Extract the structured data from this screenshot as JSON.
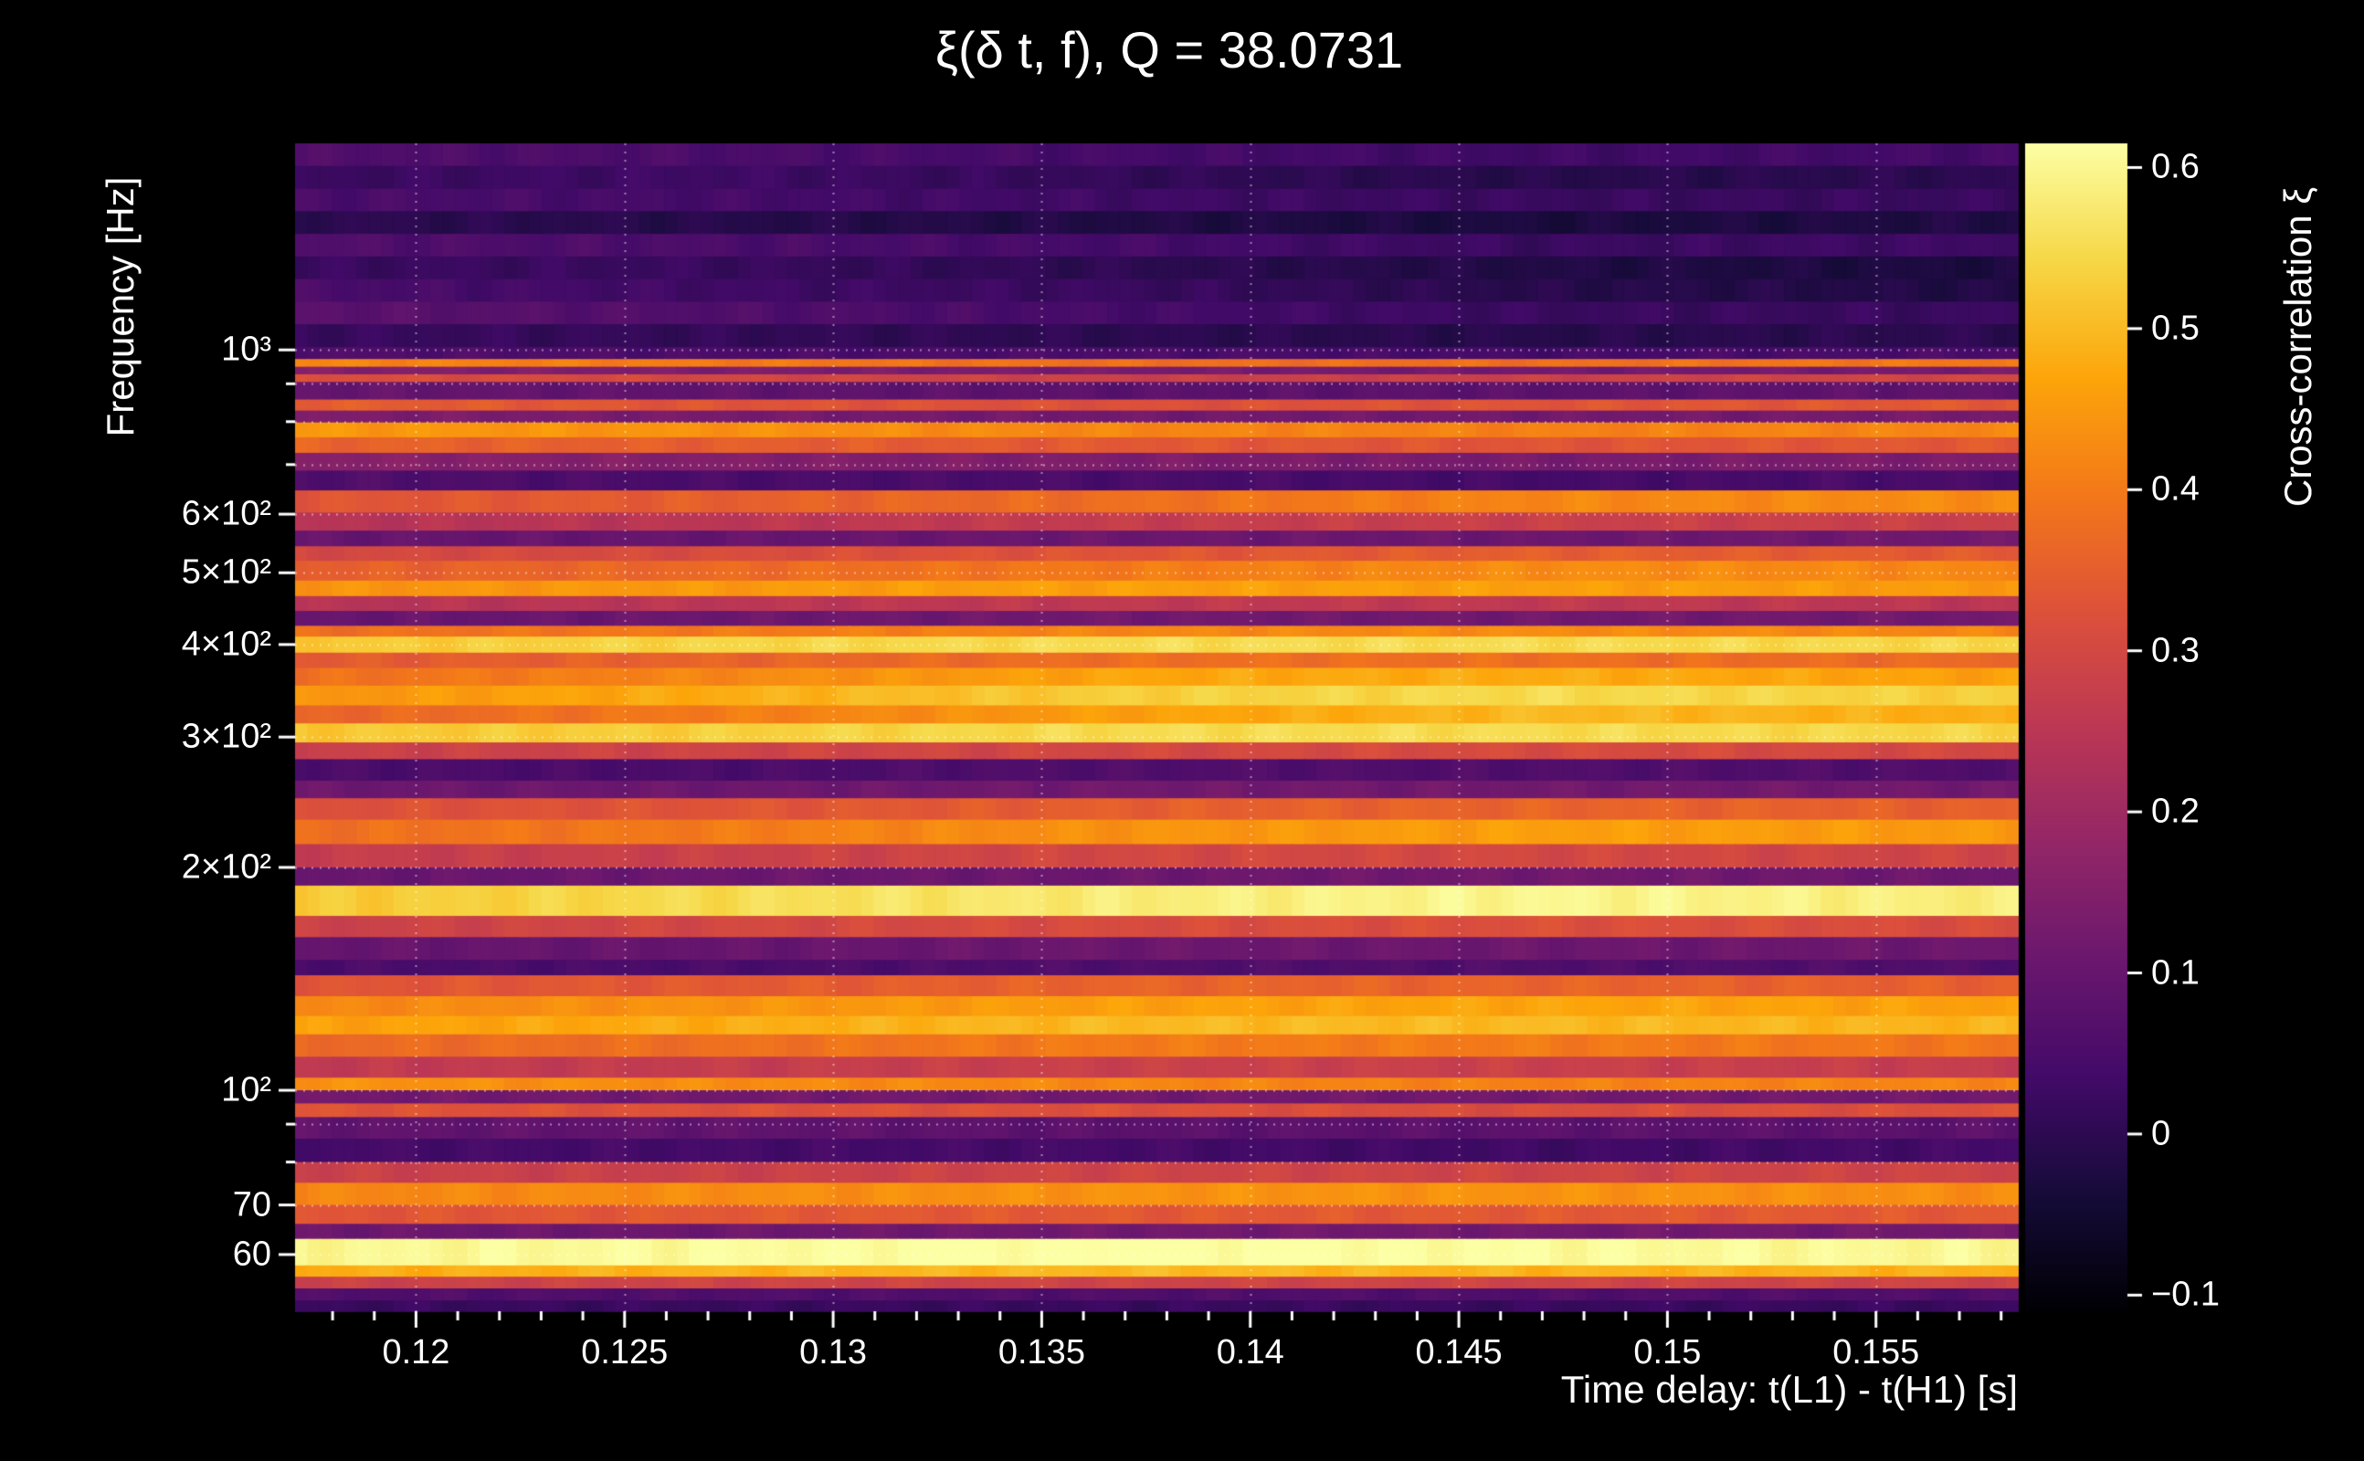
{
  "figure": {
    "background_color": "#000000",
    "text_color": "#ffffff"
  },
  "chart_data": {
    "type": "heatmap",
    "title": "ξ(δ t, f), Q = 38.0731",
    "q_value": "38.0731",
    "xlabel": "Time delay: t(L1) - t(H1) [s]",
    "ylabel": "Frequency [Hz]",
    "colorbar_label": "Cross-correlation ξ",
    "x_range": [
      0.1171,
      0.1584
    ],
    "y_range_hz": [
      50.3,
      1901
    ],
    "y_scale": "log",
    "z_range": [
      -0.11,
      0.615
    ],
    "grid": "dotted-white",
    "legend_position": "right-colorbar",
    "x_ticks": {
      "values": [
        0.12,
        0.125,
        0.13,
        0.135,
        0.14,
        0.145,
        0.15,
        0.155
      ],
      "labels": [
        "0.12",
        "0.125",
        "0.13",
        "0.135",
        "0.14",
        "0.145",
        "0.15",
        "0.155"
      ]
    },
    "x_minor_step": 0.001,
    "y_ticks_major": {
      "values": [
        60,
        70,
        100,
        200,
        300,
        400,
        500,
        600,
        1000
      ],
      "labels": [
        "60",
        "70",
        "10²",
        "2×10²",
        "3×10²",
        "4×10²",
        "5×10²",
        "6×10²",
        "10³"
      ]
    },
    "y_ticks_minor": [
      80,
      90,
      700,
      800,
      900
    ],
    "colorbar_ticks": {
      "values": [
        0.6,
        0.5,
        0.4,
        0.3,
        0.2,
        0.1,
        0,
        -0.1
      ],
      "labels": [
        "0.6",
        "0.5",
        "0.4",
        "0.3",
        "0.2",
        "0.1",
        "0",
        "−0.1"
      ]
    },
    "colormap": {
      "name": "inferno",
      "stops": [
        [
          0.0,
          "#000004"
        ],
        [
          0.1,
          "#160b39"
        ],
        [
          0.2,
          "#420a68"
        ],
        [
          0.3,
          "#6a176e"
        ],
        [
          0.4,
          "#932667"
        ],
        [
          0.5,
          "#bc3754"
        ],
        [
          0.6,
          "#dd513a"
        ],
        [
          0.7,
          "#f37819"
        ],
        [
          0.8,
          "#fca50a"
        ],
        [
          0.9,
          "#f6d746"
        ],
        [
          1.0,
          "#fcffa4"
        ]
      ]
    },
    "x_control": [
      0.1171,
      0.127,
      0.137,
      0.147,
      0.1584
    ],
    "bands": [
      {
        "f": [
          1772,
          1901
        ],
        "v": [
          0.06,
          0.05,
          0.04,
          0.03,
          0.04
        ]
      },
      {
        "f": [
          1651,
          1772
        ],
        "v": [
          0.02,
          0.03,
          0.01,
          -0.01,
          0.0
        ]
      },
      {
        "f": [
          1539,
          1651
        ],
        "v": [
          0.05,
          0.04,
          0.03,
          0.02,
          0.02
        ]
      },
      {
        "f": [
          1435,
          1539
        ],
        "v": [
          0.0,
          -0.01,
          -0.02,
          -0.03,
          -0.02
        ]
      },
      {
        "f": [
          1337,
          1435
        ],
        "v": [
          0.06,
          0.05,
          0.04,
          0.02,
          0.03
        ]
      },
      {
        "f": [
          1247,
          1337
        ],
        "v": [
          0.02,
          0.02,
          0.0,
          -0.02,
          -0.03
        ]
      },
      {
        "f": [
          1162,
          1247
        ],
        "v": [
          0.05,
          0.03,
          0.02,
          -0.01,
          -0.02
        ]
      },
      {
        "f": [
          1083,
          1162
        ],
        "v": [
          0.08,
          0.06,
          0.04,
          0.02,
          0.02
        ]
      },
      {
        "f": [
          1009,
          1083
        ],
        "v": [
          0.02,
          0.01,
          0.0,
          -0.01,
          0.0
        ]
      },
      {
        "f": [
          972,
          1009
        ],
        "v": [
          0.06,
          0.05,
          0.05,
          0.04,
          0.05
        ]
      },
      {
        "f": [
          949,
          972
        ],
        "v": [
          0.42,
          0.4,
          0.38,
          0.38,
          0.4
        ]
      },
      {
        "f": [
          927,
          949
        ],
        "v": [
          0.15,
          0.14,
          0.13,
          0.12,
          0.13
        ]
      },
      {
        "f": [
          905,
          927
        ],
        "v": [
          0.32,
          0.3,
          0.28,
          0.28,
          0.3
        ]
      },
      {
        "f": [
          857,
          905
        ],
        "v": [
          0.1,
          0.09,
          0.08,
          0.08,
          0.09
        ]
      },
      {
        "f": [
          828,
          857
        ],
        "v": [
          0.35,
          0.33,
          0.32,
          0.33,
          0.34
        ]
      },
      {
        "f": [
          798,
          828
        ],
        "v": [
          0.14,
          0.13,
          0.12,
          0.12,
          0.13
        ]
      },
      {
        "f": [
          762,
          798
        ],
        "v": [
          0.45,
          0.44,
          0.42,
          0.41,
          0.42
        ]
      },
      {
        "f": [
          726,
          762
        ],
        "v": [
          0.36,
          0.35,
          0.34,
          0.33,
          0.34
        ]
      },
      {
        "f": [
          687,
          726
        ],
        "v": [
          0.16,
          0.15,
          0.14,
          0.13,
          0.14
        ]
      },
      {
        "f": [
          646,
          687
        ],
        "v": [
          0.06,
          0.05,
          0.05,
          0.04,
          0.05
        ]
      },
      {
        "f": [
          603,
          646
        ],
        "v": [
          0.33,
          0.35,
          0.38,
          0.42,
          0.43
        ]
      },
      {
        "f": [
          570,
          603
        ],
        "v": [
          0.24,
          0.25,
          0.27,
          0.28,
          0.28
        ]
      },
      {
        "f": [
          543,
          570
        ],
        "v": [
          0.1,
          0.1,
          0.11,
          0.11,
          0.12
        ]
      },
      {
        "f": [
          519,
          543
        ],
        "v": [
          0.3,
          0.31,
          0.33,
          0.35,
          0.34
        ]
      },
      {
        "f": [
          488,
          519
        ],
        "v": [
          0.35,
          0.37,
          0.4,
          0.43,
          0.42
        ]
      },
      {
        "f": [
          465,
          488
        ],
        "v": [
          0.44,
          0.45,
          0.46,
          0.46,
          0.45
        ]
      },
      {
        "f": [
          444,
          465
        ],
        "v": [
          0.24,
          0.25,
          0.26,
          0.26,
          0.25
        ]
      },
      {
        "f": [
          424,
          444
        ],
        "v": [
          0.1,
          0.11,
          0.12,
          0.12,
          0.12
        ]
      },
      {
        "f": [
          410,
          424
        ],
        "v": [
          0.38,
          0.4,
          0.42,
          0.43,
          0.42
        ]
      },
      {
        "f": [
          390,
          410
        ],
        "v": [
          0.52,
          0.54,
          0.55,
          0.55,
          0.54
        ]
      },
      {
        "f": [
          372,
          390
        ],
        "v": [
          0.34,
          0.36,
          0.38,
          0.38,
          0.37
        ]
      },
      {
        "f": [
          352,
          372
        ],
        "v": [
          0.38,
          0.42,
          0.47,
          0.48,
          0.46
        ]
      },
      {
        "f": [
          331,
          352
        ],
        "v": [
          0.44,
          0.48,
          0.53,
          0.55,
          0.53
        ]
      },
      {
        "f": [
          313,
          331
        ],
        "v": [
          0.36,
          0.4,
          0.46,
          0.5,
          0.48
        ]
      },
      {
        "f": [
          295,
          313
        ],
        "v": [
          0.52,
          0.53,
          0.55,
          0.55,
          0.54
        ]
      },
      {
        "f": [
          280,
          295
        ],
        "v": [
          0.28,
          0.29,
          0.3,
          0.31,
          0.3
        ]
      },
      {
        "f": [
          262,
          280
        ],
        "v": [
          0.05,
          0.05,
          0.06,
          0.06,
          0.06
        ]
      },
      {
        "f": [
          248,
          262
        ],
        "v": [
          0.11,
          0.11,
          0.12,
          0.12,
          0.12
        ]
      },
      {
        "f": [
          232,
          248
        ],
        "v": [
          0.32,
          0.33,
          0.35,
          0.36,
          0.35
        ]
      },
      {
        "f": [
          215,
          232
        ],
        "v": [
          0.38,
          0.4,
          0.44,
          0.46,
          0.45
        ]
      },
      {
        "f": [
          200,
          215
        ],
        "v": [
          0.27,
          0.28,
          0.3,
          0.3,
          0.29
        ]
      },
      {
        "f": [
          189,
          200
        ],
        "v": [
          0.1,
          0.11,
          0.11,
          0.12,
          0.11
        ]
      },
      {
        "f": [
          172,
          189
        ],
        "v": [
          0.52,
          0.55,
          0.58,
          0.6,
          0.58
        ]
      },
      {
        "f": [
          161,
          172
        ],
        "v": [
          0.28,
          0.3,
          0.31,
          0.32,
          0.31
        ]
      },
      {
        "f": [
          150,
          161
        ],
        "v": [
          0.1,
          0.1,
          0.11,
          0.11,
          0.11
        ]
      },
      {
        "f": [
          143,
          150
        ],
        "v": [
          0.05,
          0.05,
          0.06,
          0.06,
          0.06
        ]
      },
      {
        "f": [
          134,
          143
        ],
        "v": [
          0.33,
          0.34,
          0.36,
          0.36,
          0.35
        ]
      },
      {
        "f": [
          126,
          134
        ],
        "v": [
          0.42,
          0.44,
          0.46,
          0.47,
          0.46
        ]
      },
      {
        "f": [
          119,
          126
        ],
        "v": [
          0.46,
          0.48,
          0.5,
          0.5,
          0.49
        ]
      },
      {
        "f": [
          111,
          119
        ],
        "v": [
          0.37,
          0.38,
          0.4,
          0.4,
          0.39
        ]
      },
      {
        "f": [
          104,
          111
        ],
        "v": [
          0.26,
          0.27,
          0.28,
          0.28,
          0.27
        ]
      },
      {
        "f": [
          100,
          104
        ],
        "v": [
          0.44,
          0.43,
          0.42,
          0.41,
          0.42
        ]
      },
      {
        "f": [
          96,
          100
        ],
        "v": [
          0.12,
          0.12,
          0.12,
          0.12,
          0.12
        ]
      },
      {
        "f": [
          92,
          96
        ],
        "v": [
          0.33,
          0.32,
          0.32,
          0.31,
          0.32
        ]
      },
      {
        "f": [
          86,
          92
        ],
        "v": [
          0.09,
          0.09,
          0.08,
          0.08,
          0.08
        ]
      },
      {
        "f": [
          80,
          86
        ],
        "v": [
          0.04,
          0.04,
          0.04,
          0.03,
          0.04
        ]
      },
      {
        "f": [
          75,
          80
        ],
        "v": [
          0.28,
          0.28,
          0.29,
          0.29,
          0.29
        ]
      },
      {
        "f": [
          70,
          75
        ],
        "v": [
          0.42,
          0.43,
          0.44,
          0.44,
          0.43
        ]
      },
      {
        "f": [
          66,
          70
        ],
        "v": [
          0.33,
          0.34,
          0.34,
          0.34,
          0.34
        ]
      },
      {
        "f": [
          63,
          66
        ],
        "v": [
          0.11,
          0.11,
          0.12,
          0.12,
          0.12
        ]
      },
      {
        "f": [
          58,
          63
        ],
        "v": [
          0.6,
          0.61,
          0.62,
          0.61,
          0.6
        ]
      },
      {
        "f": [
          56,
          58
        ],
        "v": [
          0.48,
          0.49,
          0.5,
          0.49,
          0.49
        ]
      },
      {
        "f": [
          54,
          56
        ],
        "v": [
          0.28,
          0.29,
          0.29,
          0.29,
          0.29
        ]
      },
      {
        "f": [
          52,
          54
        ],
        "v": [
          0.06,
          0.06,
          0.06,
          0.06,
          0.06
        ]
      },
      {
        "f": [
          50.3,
          52
        ],
        "v": [
          0.02,
          0.02,
          0.02,
          0.02,
          0.02
        ]
      }
    ]
  }
}
